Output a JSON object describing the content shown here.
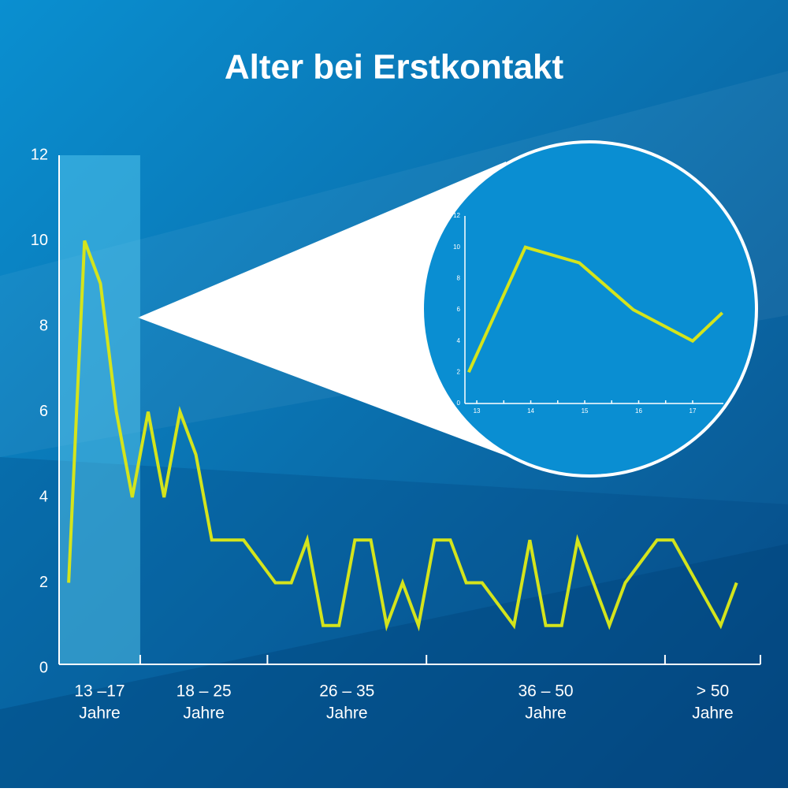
{
  "chart_data": [
    {
      "type": "line",
      "title": "Alter bei Erstkontakt",
      "x": [
        13,
        14,
        15,
        16,
        17,
        18,
        19,
        20,
        21,
        22,
        23,
        24,
        26,
        27,
        28,
        29,
        30,
        31,
        32,
        33,
        34,
        35,
        36,
        37,
        38,
        39,
        41,
        42,
        43,
        44,
        45,
        47,
        48,
        50,
        51,
        54,
        55
      ],
      "values": [
        2,
        10,
        9,
        6,
        4,
        6,
        4,
        6,
        5,
        3,
        3,
        3,
        2,
        2,
        3,
        1,
        1,
        3,
        3,
        1,
        2,
        1,
        3,
        3,
        2,
        2,
        1,
        3,
        1,
        1,
        3,
        1,
        2,
        3,
        3,
        1,
        2
      ],
      "color": "#d4e41c",
      "xlim": [
        12.4,
        56.5
      ],
      "ylim": [
        0,
        12
      ],
      "yticks": [
        0,
        2,
        4,
        6,
        8,
        10,
        12
      ],
      "xticks": [
        17.5,
        25.5,
        35.5,
        50.5,
        56.5
      ],
      "x_groups": [
        [
          "13 –17",
          "Jahre"
        ],
        [
          "18 – 25",
          "Jahre"
        ],
        [
          "26 – 35",
          "Jahre"
        ],
        [
          "36 – 50",
          "Jahre"
        ],
        [
          "> 50",
          "Jahre"
        ]
      ]
    },
    {
      "type": "line",
      "x": [
        12.85,
        13.9,
        14.9,
        15.9,
        17,
        17.55
      ],
      "values": [
        2,
        10,
        9,
        6,
        4,
        5.8
      ],
      "color": "#d4e41c",
      "xlim": [
        12.78,
        17.57
      ],
      "ylim": [
        0,
        12
      ],
      "yticks": [
        0,
        2,
        4,
        6,
        8,
        10,
        12
      ],
      "xticks": [
        13,
        14,
        15,
        16,
        17
      ],
      "xticks_minor": [
        13.5,
        14.5,
        15.5,
        16.5
      ]
    }
  ]
}
